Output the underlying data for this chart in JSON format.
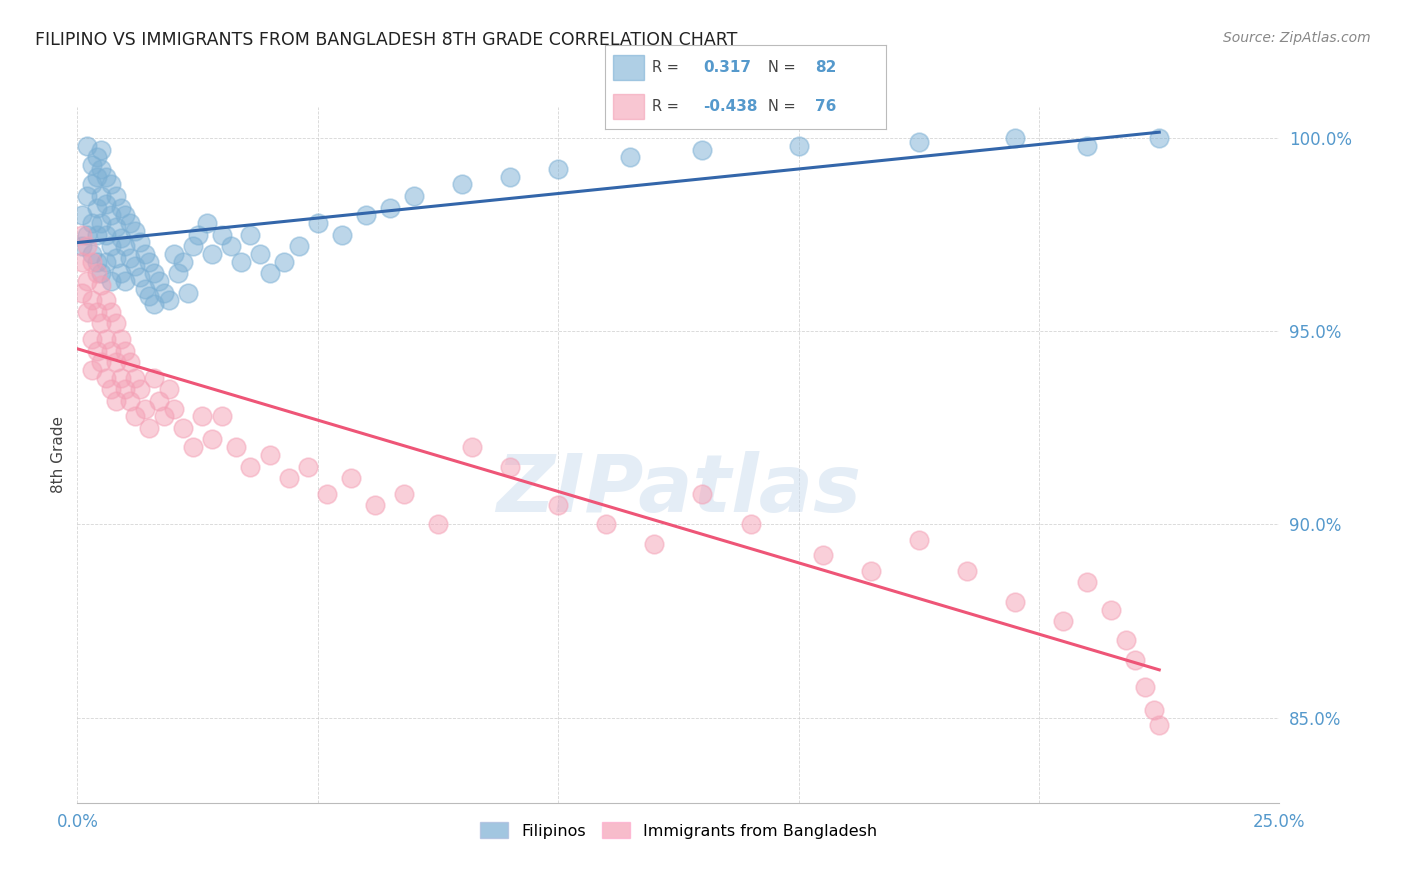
{
  "title": "FILIPINO VS IMMIGRANTS FROM BANGLADESH 8TH GRADE CORRELATION CHART",
  "source": "Source: ZipAtlas.com",
  "ylabel": "8th Grade",
  "xlim": [
    0.0,
    0.25
  ],
  "ylim": [
    0.828,
    1.008
  ],
  "yticks": [
    0.85,
    0.9,
    0.95,
    1.0
  ],
  "ytick_labels": [
    "85.0%",
    "90.0%",
    "95.0%",
    "100.0%"
  ],
  "r_filipino": 0.317,
  "n_filipino": 82,
  "r_bangladesh": -0.438,
  "n_bangladesh": 76,
  "color_filipino": "#7BAFD4",
  "color_bangladesh": "#F4A0B5",
  "trendline_color_filipino": "#3366AA",
  "trendline_color_bangladesh": "#EE5577",
  "background_color": "#FFFFFF",
  "watermark_color": "#C5D8EC",
  "filipino_x": [
    0.001,
    0.001,
    0.002,
    0.002,
    0.002,
    0.003,
    0.003,
    0.003,
    0.003,
    0.004,
    0.004,
    0.004,
    0.004,
    0.004,
    0.005,
    0.005,
    0.005,
    0.005,
    0.005,
    0.006,
    0.006,
    0.006,
    0.006,
    0.007,
    0.007,
    0.007,
    0.007,
    0.008,
    0.008,
    0.008,
    0.009,
    0.009,
    0.009,
    0.01,
    0.01,
    0.01,
    0.011,
    0.011,
    0.012,
    0.012,
    0.013,
    0.013,
    0.014,
    0.014,
    0.015,
    0.015,
    0.016,
    0.016,
    0.017,
    0.018,
    0.019,
    0.02,
    0.021,
    0.022,
    0.023,
    0.024,
    0.025,
    0.027,
    0.028,
    0.03,
    0.032,
    0.034,
    0.036,
    0.038,
    0.04,
    0.043,
    0.046,
    0.05,
    0.055,
    0.06,
    0.065,
    0.07,
    0.08,
    0.09,
    0.1,
    0.115,
    0.13,
    0.15,
    0.175,
    0.195,
    0.21,
    0.225
  ],
  "filipino_y": [
    0.98,
    0.972,
    0.998,
    0.985,
    0.975,
    0.993,
    0.988,
    0.978,
    0.97,
    0.995,
    0.99,
    0.982,
    0.975,
    0.968,
    0.997,
    0.992,
    0.985,
    0.978,
    0.965,
    0.99,
    0.983,
    0.975,
    0.968,
    0.988,
    0.98,
    0.972,
    0.963,
    0.985,
    0.977,
    0.969,
    0.982,
    0.974,
    0.965,
    0.98,
    0.972,
    0.963,
    0.978,
    0.969,
    0.976,
    0.967,
    0.973,
    0.964,
    0.97,
    0.961,
    0.968,
    0.959,
    0.965,
    0.957,
    0.963,
    0.96,
    0.958,
    0.97,
    0.965,
    0.968,
    0.96,
    0.972,
    0.975,
    0.978,
    0.97,
    0.975,
    0.972,
    0.968,
    0.975,
    0.97,
    0.965,
    0.968,
    0.972,
    0.978,
    0.975,
    0.98,
    0.982,
    0.985,
    0.988,
    0.99,
    0.992,
    0.995,
    0.997,
    0.998,
    0.999,
    1.0,
    0.998,
    1.0
  ],
  "bangladesh_x": [
    0.001,
    0.001,
    0.001,
    0.002,
    0.002,
    0.002,
    0.003,
    0.003,
    0.003,
    0.003,
    0.004,
    0.004,
    0.004,
    0.005,
    0.005,
    0.005,
    0.006,
    0.006,
    0.006,
    0.007,
    0.007,
    0.007,
    0.008,
    0.008,
    0.008,
    0.009,
    0.009,
    0.01,
    0.01,
    0.011,
    0.011,
    0.012,
    0.012,
    0.013,
    0.014,
    0.015,
    0.016,
    0.017,
    0.018,
    0.019,
    0.02,
    0.022,
    0.024,
    0.026,
    0.028,
    0.03,
    0.033,
    0.036,
    0.04,
    0.044,
    0.048,
    0.052,
    0.057,
    0.062,
    0.068,
    0.075,
    0.082,
    0.09,
    0.1,
    0.11,
    0.12,
    0.13,
    0.14,
    0.155,
    0.165,
    0.175,
    0.185,
    0.195,
    0.205,
    0.21,
    0.215,
    0.218,
    0.22,
    0.222,
    0.224,
    0.225
  ],
  "bangladesh_y": [
    0.975,
    0.968,
    0.96,
    0.972,
    0.963,
    0.955,
    0.968,
    0.958,
    0.948,
    0.94,
    0.965,
    0.955,
    0.945,
    0.962,
    0.952,
    0.942,
    0.958,
    0.948,
    0.938,
    0.955,
    0.945,
    0.935,
    0.952,
    0.942,
    0.932,
    0.948,
    0.938,
    0.945,
    0.935,
    0.942,
    0.932,
    0.938,
    0.928,
    0.935,
    0.93,
    0.925,
    0.938,
    0.932,
    0.928,
    0.935,
    0.93,
    0.925,
    0.92,
    0.928,
    0.922,
    0.928,
    0.92,
    0.915,
    0.918,
    0.912,
    0.915,
    0.908,
    0.912,
    0.905,
    0.908,
    0.9,
    0.92,
    0.915,
    0.905,
    0.9,
    0.895,
    0.908,
    0.9,
    0.892,
    0.888,
    0.896,
    0.888,
    0.88,
    0.875,
    0.885,
    0.878,
    0.87,
    0.865,
    0.858,
    0.852,
    0.848
  ]
}
